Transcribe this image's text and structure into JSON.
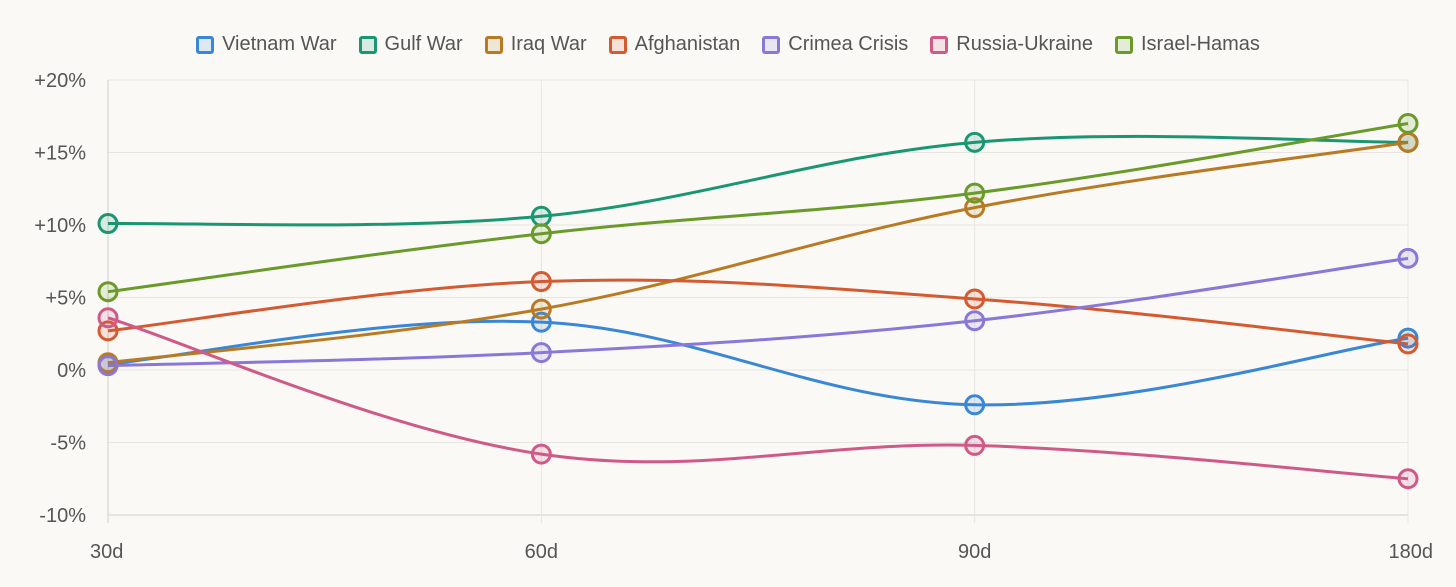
{
  "chart_data": {
    "type": "line",
    "title": "",
    "xlabel": "",
    "ylabel": "",
    "categories": [
      "30d",
      "60d",
      "90d",
      "180d"
    ],
    "y_ticks": [
      "+20%",
      "+15%",
      "+10%",
      "+5%",
      "0%",
      "-5%",
      "-10%"
    ],
    "ylim": [
      -10,
      20
    ],
    "grid": true,
    "legend_position": "top-center",
    "series": [
      {
        "name": "Vietnam War",
        "color": "#3a87d6",
        "values": [
          0.4,
          3.3,
          -2.4,
          2.2
        ]
      },
      {
        "name": "Gulf War",
        "color": "#1a9673",
        "values": [
          10.1,
          10.6,
          15.7,
          15.7
        ]
      },
      {
        "name": "Iraq War",
        "color": "#b87b24",
        "values": [
          0.5,
          4.2,
          11.2,
          15.7
        ]
      },
      {
        "name": "Afghanistan",
        "color": "#d45a31",
        "values": [
          2.7,
          6.1,
          4.9,
          1.8
        ]
      },
      {
        "name": "Crimea Crisis",
        "color": "#8a78d8",
        "values": [
          0.3,
          1.2,
          3.4,
          7.7
        ]
      },
      {
        "name": "Russia-Ukraine",
        "color": "#cf5a88",
        "values": [
          3.6,
          -5.8,
          -5.2,
          -7.5
        ]
      },
      {
        "name": "Israel-Hamas",
        "color": "#6a9a2a",
        "values": [
          5.4,
          9.4,
          12.2,
          17.0
        ]
      }
    ]
  }
}
